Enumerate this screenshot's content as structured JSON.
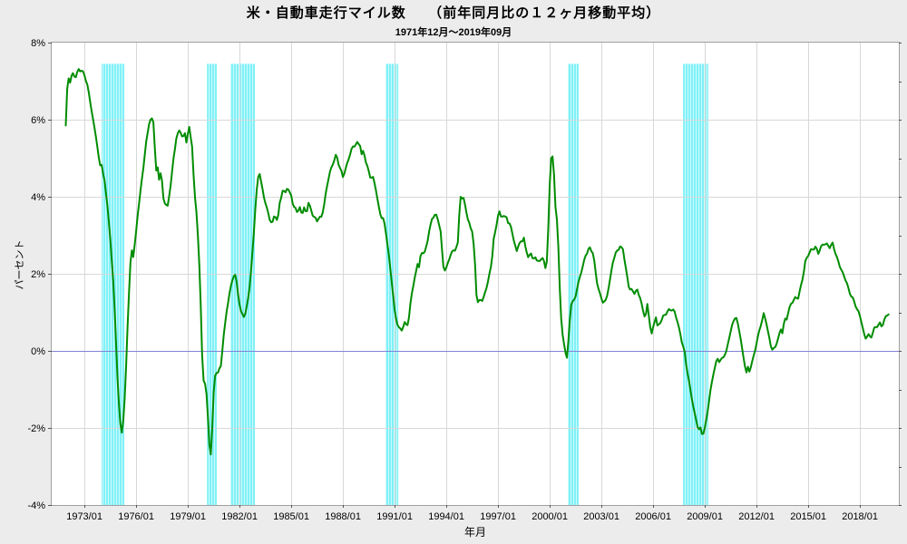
{
  "chart_data": {
    "type": "line",
    "title": "米・自動車走行マイル数　　（前年同月比の１２ヶ月移動平均）",
    "subtitle": "1971年12月～2019年09月",
    "xlabel": "年月",
    "ylabel": "パーセント",
    "ylim": [
      -4,
      8
    ],
    "xlim": [
      1971.1,
      2020.26
    ],
    "grid": true,
    "legend": "none",
    "yticks": [
      {
        "value": 8,
        "label": "8%"
      },
      {
        "value": 6,
        "label": "6%"
      },
      {
        "value": 4,
        "label": "4%"
      },
      {
        "value": 2,
        "label": "2%"
      },
      {
        "value": 0,
        "label": "0%"
      },
      {
        "value": -2,
        "label": "-2%"
      },
      {
        "value": -4,
        "label": "-4%"
      }
    ],
    "xticks": [
      {
        "year": 1973,
        "label": "1973/01"
      },
      {
        "year": 1976,
        "label": "1976/01"
      },
      {
        "year": 1979,
        "label": "1979/01"
      },
      {
        "year": 1982,
        "label": "1982/01"
      },
      {
        "year": 1985,
        "label": "1985/01"
      },
      {
        "year": 1988,
        "label": "1988/01"
      },
      {
        "year": 1991,
        "label": "1991/01"
      },
      {
        "year": 1994,
        "label": "1994/01"
      },
      {
        "year": 1997,
        "label": "1997/01"
      },
      {
        "year": 2000,
        "label": "2000/01"
      },
      {
        "year": 2003,
        "label": "2003/01"
      },
      {
        "year": 2006,
        "label": "2006/01"
      },
      {
        "year": 2009,
        "label": "2009/01"
      },
      {
        "year": 2012,
        "label": "2012/01"
      },
      {
        "year": 2015,
        "label": "2015/01"
      },
      {
        "year": 2018,
        "label": "2018/01"
      }
    ],
    "series_start": "1971/12",
    "series_end": "2019/09",
    "recession_bands": {
      "top_value": 7.45,
      "ranges": [
        [
          1974.0,
          1975.32
        ],
        [
          1980.11,
          1980.68
        ],
        [
          1981.47,
          1982.89
        ],
        [
          1990.47,
          1991.21
        ],
        [
          2001.05,
          2001.68
        ],
        [
          2007.74,
          2009.21
        ]
      ]
    },
    "colors": {
      "background": "#ececec",
      "plot_bg": "#ffffff",
      "line": "#008c00",
      "band": "#80f1f7",
      "band_stripe": "#ccfafd",
      "grid": "#d8d8d8",
      "zero_line": "#8282d8",
      "frame": "#a0a0a0",
      "tick": "#555555"
    },
    "points": [
      [
        1971.92,
        5.85
      ],
      [
        1972.0,
        6.8
      ],
      [
        1972.06,
        7.15
      ],
      [
        1972.13,
        6.9
      ],
      [
        1972.21,
        7.1
      ],
      [
        1972.33,
        7.2
      ],
      [
        1972.5,
        7.15
      ],
      [
        1972.67,
        7.3
      ],
      [
        1972.83,
        7.25
      ],
      [
        1973.0,
        7.15
      ],
      [
        1973.17,
        6.9
      ],
      [
        1973.33,
        6.5
      ],
      [
        1973.5,
        6.0
      ],
      [
        1973.67,
        5.55
      ],
      [
        1973.83,
        5.0
      ],
      [
        1973.92,
        4.8
      ],
      [
        1974.0,
        4.85
      ],
      [
        1974.08,
        4.6
      ],
      [
        1974.17,
        4.4
      ],
      [
        1974.33,
        3.8
      ],
      [
        1974.5,
        2.9
      ],
      [
        1974.67,
        1.8
      ],
      [
        1974.79,
        0.7
      ],
      [
        1974.92,
        -0.7
      ],
      [
        1975.04,
        -1.7
      ],
      [
        1975.13,
        -2.1
      ],
      [
        1975.21,
        -2.05
      ],
      [
        1975.33,
        -1.3
      ],
      [
        1975.42,
        -0.4
      ],
      [
        1975.5,
        0.6
      ],
      [
        1975.58,
        1.45
      ],
      [
        1975.67,
        2.3
      ],
      [
        1975.75,
        2.6
      ],
      [
        1975.83,
        2.45
      ],
      [
        1975.96,
        2.9
      ],
      [
        1976.08,
        3.5
      ],
      [
        1976.25,
        4.15
      ],
      [
        1976.42,
        4.75
      ],
      [
        1976.58,
        5.4
      ],
      [
        1976.75,
        5.9
      ],
      [
        1976.88,
        6.05
      ],
      [
        1977.0,
        5.95
      ],
      [
        1977.08,
        5.3
      ],
      [
        1977.17,
        4.65
      ],
      [
        1977.25,
        4.75
      ],
      [
        1977.33,
        4.45
      ],
      [
        1977.42,
        4.6
      ],
      [
        1977.5,
        4.4
      ],
      [
        1977.58,
        3.95
      ],
      [
        1977.71,
        3.8
      ],
      [
        1977.83,
        3.75
      ],
      [
        1978.0,
        4.3
      ],
      [
        1978.17,
        5.0
      ],
      [
        1978.33,
        5.5
      ],
      [
        1978.54,
        5.75
      ],
      [
        1978.71,
        5.5
      ],
      [
        1978.83,
        5.7
      ],
      [
        1978.92,
        5.45
      ],
      [
        1979.08,
        5.8
      ],
      [
        1979.25,
        5.3
      ],
      [
        1979.38,
        4.15
      ],
      [
        1979.5,
        3.6
      ],
      [
        1979.63,
        2.65
      ],
      [
        1979.75,
        1.2
      ],
      [
        1979.83,
        -0.1
      ],
      [
        1979.92,
        -0.8
      ],
      [
        1980.04,
        -0.9
      ],
      [
        1980.13,
        -1.35
      ],
      [
        1980.21,
        -2.2
      ],
      [
        1980.31,
        -2.8
      ],
      [
        1980.38,
        -2.5
      ],
      [
        1980.46,
        -1.4
      ],
      [
        1980.54,
        -0.75
      ],
      [
        1980.63,
        -0.55
      ],
      [
        1980.79,
        -0.5
      ],
      [
        1980.92,
        -0.4
      ],
      [
        1981.08,
        0.4
      ],
      [
        1981.25,
        1.0
      ],
      [
        1981.42,
        1.5
      ],
      [
        1981.58,
        1.85
      ],
      [
        1981.71,
        2.05
      ],
      [
        1981.83,
        1.8
      ],
      [
        1981.96,
        1.3
      ],
      [
        1982.08,
        1.0
      ],
      [
        1982.21,
        0.9
      ],
      [
        1982.33,
        0.95
      ],
      [
        1982.46,
        1.25
      ],
      [
        1982.58,
        1.65
      ],
      [
        1982.71,
        2.3
      ],
      [
        1982.83,
        3.05
      ],
      [
        1982.96,
        4.0
      ],
      [
        1983.08,
        4.5
      ],
      [
        1983.17,
        4.62
      ],
      [
        1983.29,
        4.3
      ],
      [
        1983.42,
        4.0
      ],
      [
        1983.54,
        3.8
      ],
      [
        1983.67,
        3.55
      ],
      [
        1983.79,
        3.35
      ],
      [
        1983.92,
        3.3
      ],
      [
        1984.04,
        3.55
      ],
      [
        1984.13,
        3.45
      ],
      [
        1984.21,
        3.35
      ],
      [
        1984.33,
        3.85
      ],
      [
        1984.5,
        4.15
      ],
      [
        1984.63,
        4.1
      ],
      [
        1984.75,
        4.2
      ],
      [
        1984.88,
        4.1
      ],
      [
        1985.0,
        4.05
      ],
      [
        1985.13,
        3.7
      ],
      [
        1985.25,
        3.75
      ],
      [
        1985.38,
        3.6
      ],
      [
        1985.5,
        3.7
      ],
      [
        1985.63,
        3.55
      ],
      [
        1985.75,
        3.65
      ],
      [
        1985.88,
        3.55
      ],
      [
        1986.0,
        3.85
      ],
      [
        1986.13,
        3.7
      ],
      [
        1986.29,
        3.5
      ],
      [
        1986.5,
        3.38
      ],
      [
        1986.63,
        3.45
      ],
      [
        1986.71,
        3.38
      ],
      [
        1986.88,
        3.7
      ],
      [
        1987.04,
        4.2
      ],
      [
        1987.21,
        4.6
      ],
      [
        1987.38,
        4.8
      ],
      [
        1987.54,
        5.0
      ],
      [
        1987.63,
        5.05
      ],
      [
        1987.75,
        4.85
      ],
      [
        1987.88,
        4.7
      ],
      [
        1988.0,
        4.55
      ],
      [
        1988.21,
        4.8
      ],
      [
        1988.38,
        5.05
      ],
      [
        1988.54,
        5.25
      ],
      [
        1988.71,
        5.35
      ],
      [
        1988.88,
        5.42
      ],
      [
        1989.0,
        5.35
      ],
      [
        1989.08,
        5.1
      ],
      [
        1989.21,
        5.18
      ],
      [
        1989.33,
        4.9
      ],
      [
        1989.46,
        4.7
      ],
      [
        1989.58,
        4.52
      ],
      [
        1989.75,
        4.5
      ],
      [
        1989.88,
        4.3
      ],
      [
        1990.0,
        3.95
      ],
      [
        1990.13,
        3.6
      ],
      [
        1990.25,
        3.45
      ],
      [
        1990.38,
        3.38
      ],
      [
        1990.5,
        3.05
      ],
      [
        1990.63,
        2.6
      ],
      [
        1990.75,
        2.15
      ],
      [
        1990.88,
        1.6
      ],
      [
        1991.0,
        1.05
      ],
      [
        1991.13,
        0.72
      ],
      [
        1991.29,
        0.52
      ],
      [
        1991.42,
        0.55
      ],
      [
        1991.54,
        0.68
      ],
      [
        1991.63,
        0.78
      ],
      [
        1991.71,
        0.65
      ],
      [
        1991.83,
        0.85
      ],
      [
        1991.96,
        1.4
      ],
      [
        1992.13,
        1.8
      ],
      [
        1992.25,
        2.05
      ],
      [
        1992.33,
        2.28
      ],
      [
        1992.42,
        2.18
      ],
      [
        1992.5,
        2.45
      ],
      [
        1992.63,
        2.62
      ],
      [
        1992.75,
        2.58
      ],
      [
        1992.88,
        2.75
      ],
      [
        1993.0,
        3.1
      ],
      [
        1993.17,
        3.4
      ],
      [
        1993.33,
        3.55
      ],
      [
        1993.46,
        3.5
      ],
      [
        1993.58,
        3.3
      ],
      [
        1993.67,
        3.1
      ],
      [
        1993.79,
        2.4
      ],
      [
        1993.87,
        2.0
      ],
      [
        1993.95,
        2.16
      ],
      [
        1994.03,
        2.1
      ],
      [
        1994.1,
        2.3
      ],
      [
        1994.26,
        2.51
      ],
      [
        1994.42,
        2.63
      ],
      [
        1994.55,
        2.68
      ],
      [
        1994.66,
        2.75
      ],
      [
        1994.74,
        3.45
      ],
      [
        1994.84,
        4.04
      ],
      [
        1994.95,
        3.85
      ],
      [
        1995.03,
        3.97
      ],
      [
        1995.1,
        3.76
      ],
      [
        1995.24,
        3.41
      ],
      [
        1995.34,
        3.33
      ],
      [
        1995.5,
        3.1
      ],
      [
        1995.63,
        2.58
      ],
      [
        1995.68,
        2.12
      ],
      [
        1995.74,
        1.5
      ],
      [
        1995.79,
        1.29
      ],
      [
        1995.84,
        1.22
      ],
      [
        1996.0,
        1.34
      ],
      [
        1996.05,
        1.29
      ],
      [
        1996.16,
        1.38
      ],
      [
        1996.42,
        1.81
      ],
      [
        1996.58,
        2.16
      ],
      [
        1996.68,
        2.51
      ],
      [
        1996.74,
        2.87
      ],
      [
        1996.89,
        3.17
      ],
      [
        1996.95,
        3.41
      ],
      [
        1997.0,
        3.52
      ],
      [
        1997.11,
        3.62
      ],
      [
        1997.16,
        3.5
      ],
      [
        1997.26,
        3.57
      ],
      [
        1997.42,
        3.45
      ],
      [
        1997.47,
        3.52
      ],
      [
        1997.58,
        3.33
      ],
      [
        1997.68,
        3.26
      ],
      [
        1997.79,
        3.15
      ],
      [
        1997.96,
        2.78
      ],
      [
        1998.08,
        2.6
      ],
      [
        1998.21,
        2.82
      ],
      [
        1998.38,
        2.8
      ],
      [
        1998.5,
        2.95
      ],
      [
        1998.63,
        2.55
      ],
      [
        1998.75,
        2.45
      ],
      [
        1998.88,
        2.55
      ],
      [
        1999.0,
        2.42
      ],
      [
        1999.13,
        2.5
      ],
      [
        1999.25,
        2.32
      ],
      [
        1999.42,
        2.35
      ],
      [
        1999.54,
        2.3
      ],
      [
        1999.63,
        2.4
      ],
      [
        1999.7,
        2.3
      ],
      [
        1999.78,
        2.1
      ],
      [
        1999.88,
        2.5
      ],
      [
        1999.96,
        4.0
      ],
      [
        2000.13,
        5.38
      ],
      [
        2000.21,
        4.63
      ],
      [
        2000.28,
        4.55
      ],
      [
        2000.35,
        3.5
      ],
      [
        2000.45,
        3.35
      ],
      [
        2000.58,
        1.65
      ],
      [
        2000.7,
        0.56
      ],
      [
        2000.88,
        0.05
      ],
      [
        2001.02,
        -0.2
      ],
      [
        2001.13,
        0.6
      ],
      [
        2001.25,
        1.2
      ],
      [
        2001.33,
        1.25
      ],
      [
        2001.45,
        1.3
      ],
      [
        2001.6,
        1.65
      ],
      [
        2001.74,
        1.9
      ],
      [
        2001.85,
        2.1
      ],
      [
        2002.1,
        2.5
      ],
      [
        2002.2,
        2.55
      ],
      [
        2002.3,
        2.67
      ],
      [
        2002.38,
        2.55
      ],
      [
        2002.46,
        2.65
      ],
      [
        2002.58,
        2.35
      ],
      [
        2002.74,
        1.8
      ],
      [
        2002.9,
        1.5
      ],
      [
        2003.05,
        1.28
      ],
      [
        2003.2,
        1.22
      ],
      [
        2003.3,
        1.35
      ],
      [
        2003.5,
        1.85
      ],
      [
        2003.65,
        2.3
      ],
      [
        2003.8,
        2.5
      ],
      [
        2003.95,
        2.63
      ],
      [
        2004.1,
        2.67
      ],
      [
        2004.2,
        2.6
      ],
      [
        2004.26,
        2.65
      ],
      [
        2004.33,
        2.4
      ],
      [
        2004.42,
        2.14
      ],
      [
        2004.6,
        1.65
      ],
      [
        2004.77,
        1.57
      ],
      [
        2004.91,
        1.5
      ],
      [
        2005.09,
        1.53
      ],
      [
        2005.26,
        1.38
      ],
      [
        2005.44,
        0.99
      ],
      [
        2005.56,
        0.92
      ],
      [
        2005.68,
        1.22
      ],
      [
        2005.79,
        0.75
      ],
      [
        2005.91,
        0.4
      ],
      [
        2006.08,
        0.75
      ],
      [
        2006.17,
        0.9
      ],
      [
        2006.26,
        0.62
      ],
      [
        2006.45,
        0.8
      ],
      [
        2006.6,
        0.9
      ],
      [
        2006.85,
        1.0
      ],
      [
        2007.1,
        1.09
      ],
      [
        2007.25,
        1.02
      ],
      [
        2007.39,
        0.82
      ],
      [
        2007.56,
        0.47
      ],
      [
        2007.7,
        0.16
      ],
      [
        2007.82,
        0.0
      ],
      [
        2007.9,
        -0.31
      ],
      [
        2008.08,
        -0.78
      ],
      [
        2008.26,
        -1.25
      ],
      [
        2008.43,
        -1.67
      ],
      [
        2008.57,
        -1.95
      ],
      [
        2008.66,
        -2.07
      ],
      [
        2008.73,
        -2.0
      ],
      [
        2008.8,
        -2.14
      ],
      [
        2008.88,
        -2.18
      ],
      [
        2009.0,
        -2.0
      ],
      [
        2009.14,
        -1.64
      ],
      [
        2009.31,
        -1.08
      ],
      [
        2009.49,
        -0.61
      ],
      [
        2009.6,
        -0.42
      ],
      [
        2009.7,
        -0.25
      ],
      [
        2009.78,
        -0.18
      ],
      [
        2009.85,
        -0.28
      ],
      [
        2009.96,
        -0.22
      ],
      [
        2010.08,
        -0.12
      ],
      [
        2010.25,
        -0.02
      ],
      [
        2010.42,
        0.35
      ],
      [
        2010.63,
        0.72
      ],
      [
        2010.79,
        0.92
      ],
      [
        2010.92,
        0.7
      ],
      [
        2011.04,
        0.45
      ],
      [
        2011.17,
        0.05
      ],
      [
        2011.29,
        -0.3
      ],
      [
        2011.42,
        -0.59
      ],
      [
        2011.5,
        -0.48
      ],
      [
        2011.58,
        -0.55
      ],
      [
        2011.71,
        -0.35
      ],
      [
        2011.88,
        -0.05
      ],
      [
        2012.04,
        0.3
      ],
      [
        2012.21,
        0.6
      ],
      [
        2012.42,
        0.92
      ],
      [
        2012.54,
        0.8
      ],
      [
        2012.67,
        0.5
      ],
      [
        2012.83,
        0.15
      ],
      [
        2012.96,
        0.03
      ],
      [
        2013.08,
        0.08
      ],
      [
        2013.25,
        0.3
      ],
      [
        2013.42,
        0.55
      ],
      [
        2013.5,
        0.48
      ],
      [
        2013.63,
        0.82
      ],
      [
        2013.75,
        0.85
      ],
      [
        2013.88,
        1.08
      ],
      [
        2014.04,
        1.25
      ],
      [
        2014.21,
        1.32
      ],
      [
        2014.42,
        1.38
      ],
      [
        2014.58,
        1.7
      ],
      [
        2014.71,
        1.95
      ],
      [
        2014.83,
        2.32
      ],
      [
        2015.04,
        2.52
      ],
      [
        2015.25,
        2.62
      ],
      [
        2015.42,
        2.7
      ],
      [
        2015.58,
        2.58
      ],
      [
        2015.75,
        2.7
      ],
      [
        2015.92,
        2.78
      ],
      [
        2016.08,
        2.72
      ],
      [
        2016.25,
        2.7
      ],
      [
        2016.42,
        2.8
      ],
      [
        2016.58,
        2.55
      ],
      [
        2016.83,
        2.2
      ],
      [
        2017.04,
        1.95
      ],
      [
        2017.21,
        1.82
      ],
      [
        2017.38,
        1.55
      ],
      [
        2017.58,
        1.38
      ],
      [
        2017.79,
        1.12
      ],
      [
        2018.04,
        0.85
      ],
      [
        2018.29,
        0.35
      ],
      [
        2018.46,
        0.45
      ],
      [
        2018.63,
        0.32
      ],
      [
        2018.83,
        0.55
      ],
      [
        2019.0,
        0.65
      ],
      [
        2019.17,
        0.72
      ],
      [
        2019.29,
        0.68
      ],
      [
        2019.5,
        0.88
      ],
      [
        2019.67,
        0.95
      ]
    ]
  }
}
